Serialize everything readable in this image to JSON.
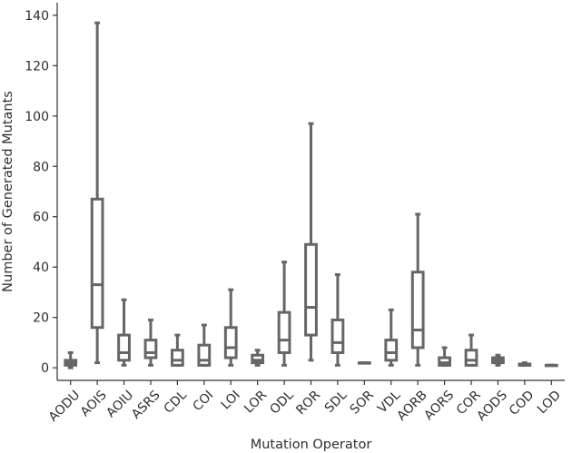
{
  "chart_data": {
    "type": "box",
    "xlabel": "Mutation Operator",
    "ylabel": "Number of Generated Mutants",
    "ylim": [
      -5,
      145
    ],
    "yticks": [
      0,
      20,
      40,
      60,
      80,
      100,
      120,
      140
    ],
    "grid": false,
    "colors": {
      "box": "#666666",
      "axis": "#333333",
      "text": "#2e2e2e"
    },
    "boxes": [
      {
        "category": "AODU",
        "min": 0,
        "q1": 1,
        "median": 2,
        "q3": 3,
        "max": 6
      },
      {
        "category": "AOIS",
        "min": 2,
        "q1": 16,
        "median": 33,
        "q3": 67,
        "max": 137
      },
      {
        "category": "AOIU",
        "min": 1,
        "q1": 3,
        "median": 6,
        "q3": 13,
        "max": 27
      },
      {
        "category": "ASRS",
        "min": 1,
        "q1": 4,
        "median": 6,
        "q3": 11,
        "max": 19
      },
      {
        "category": "CDL",
        "min": 1,
        "q1": 1,
        "median": 3,
        "q3": 7,
        "max": 13
      },
      {
        "category": "COI",
        "min": 1,
        "q1": 1,
        "median": 3,
        "q3": 9,
        "max": 17
      },
      {
        "category": "LOI",
        "min": 1,
        "q1": 4,
        "median": 8,
        "q3": 16,
        "max": 31
      },
      {
        "category": "LOR",
        "min": 1,
        "q1": 2,
        "median": 3,
        "q3": 5,
        "max": 7
      },
      {
        "category": "ODL",
        "min": 1,
        "q1": 6,
        "median": 11,
        "q3": 22,
        "max": 42
      },
      {
        "category": "ROR",
        "min": 3,
        "q1": 13,
        "median": 24,
        "q3": 49,
        "max": 97
      },
      {
        "category": "SDL",
        "min": 1,
        "q1": 6,
        "median": 10,
        "q3": 19,
        "max": 37
      },
      {
        "category": "SOR",
        "min": 2,
        "q1": 2,
        "median": 2,
        "q3": 2,
        "max": 2
      },
      {
        "category": "VDL",
        "min": 1,
        "q1": 3,
        "median": 6,
        "q3": 11,
        "max": 23
      },
      {
        "category": "AORB",
        "min": 1,
        "q1": 8,
        "median": 15,
        "q3": 38,
        "max": 61
      },
      {
        "category": "AORS",
        "min": 1,
        "q1": 1,
        "median": 2,
        "q3": 4,
        "max": 8
      },
      {
        "category": "COR",
        "min": 1,
        "q1": 1,
        "median": 3,
        "q3": 7,
        "max": 13
      },
      {
        "category": "AODS",
        "min": 1,
        "q1": 2,
        "median": 3,
        "q3": 4,
        "max": 5
      },
      {
        "category": "COD",
        "min": 1,
        "q1": 1,
        "median": 1,
        "q3": 1.5,
        "max": 2
      },
      {
        "category": "LOD",
        "min": 1,
        "q1": 1,
        "median": 1,
        "q3": 1,
        "max": 1
      }
    ]
  }
}
